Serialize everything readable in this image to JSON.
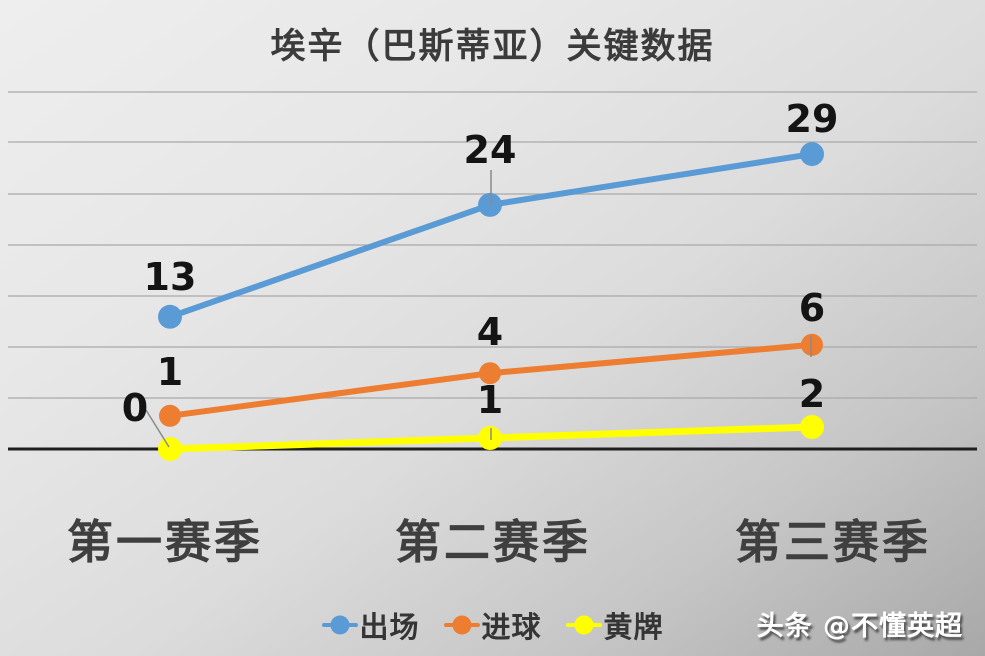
{
  "chart_data": {
    "type": "line",
    "title": "埃辛（巴斯蒂亚）关键数据",
    "categories": [
      "第一赛季",
      "第二赛季",
      "第三赛季"
    ],
    "series": [
      {
        "name": "出场",
        "color": "#5B9BD5",
        "values": [
          13,
          24,
          29
        ]
      },
      {
        "name": "进球",
        "color": "#ED7D31",
        "values": [
          1,
          4,
          6
        ]
      },
      {
        "name": "黄牌",
        "color": "#FFFF00",
        "values": [
          0,
          1,
          2
        ]
      }
    ],
    "ylim": [
      0,
      35
    ],
    "gridline_step": 5,
    "grid": true,
    "data_labels": true,
    "legend_position": "bottom",
    "colors": {
      "axis": "#1f1f1f",
      "gridline": "#a9a9a9",
      "data_label": "#141414",
      "leader_line": "#8a8a8a"
    }
  },
  "watermark": {
    "text": "头条 @不懂英超"
  }
}
